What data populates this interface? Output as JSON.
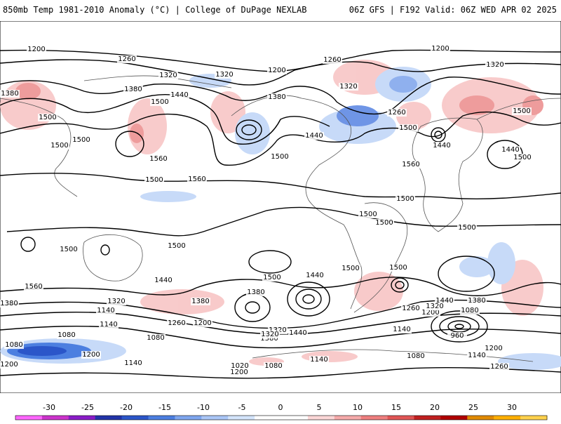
{
  "header": {
    "left": "850mb Temp 1981-2010 Anomaly (°C) | College of DuPage NEXLAB",
    "right": "06Z GFS | F192 Valid: 06Z WED APR 02 2025"
  },
  "colorbar": {
    "labels": [
      "-30",
      "-25",
      "-20",
      "-15",
      "-10",
      "-5",
      "0",
      "5",
      "10",
      "15",
      "20",
      "25",
      "30"
    ],
    "colors": [
      "#ff66ff",
      "#cc33cc",
      "#8a1cc8",
      "#2233a8",
      "#2b56c9",
      "#4c7fe0",
      "#7fa6ee",
      "#aac6f6",
      "#d4e4fb",
      "#ffffff",
      "#ffffff",
      "#fbd7d7",
      "#f5aaaa",
      "#ee7f7f",
      "#e05555",
      "#c02020",
      "#b00000",
      "#e08a00",
      "#ffb000",
      "#ffd24d"
    ]
  },
  "contours": {
    "labels": [
      "1200",
      "1260",
      "1320",
      "1380",
      "1500",
      "1440",
      "1500",
      "1560",
      "1500",
      "1500",
      "1500",
      "1560",
      "1500",
      "1440",
      "1380",
      "1320",
      "1200",
      "1380",
      "1320",
      "1260",
      "1440",
      "1500",
      "1560",
      "1500",
      "1440",
      "1500",
      "1260",
      "1200",
      "1320",
      "1500",
      "1500",
      "1500",
      "1500",
      "1500",
      "1560",
      "1440",
      "1380",
      "1380",
      "1320",
      "1440",
      "1380",
      "1140",
      "1140",
      "1080",
      "1200",
      "1260",
      "1200",
      "1140",
      "1320",
      "1080",
      "1020",
      "1080",
      "1200",
      "1140",
      "1260",
      "1140",
      "1080",
      "1200",
      "1200",
      "1140",
      "1260",
      "960",
      "1080",
      "1500",
      "1500",
      "1500",
      "1500",
      "1440",
      "1380",
      "1320",
      "1440",
      "1380",
      "1320",
      "1200",
      "1080"
    ]
  }
}
